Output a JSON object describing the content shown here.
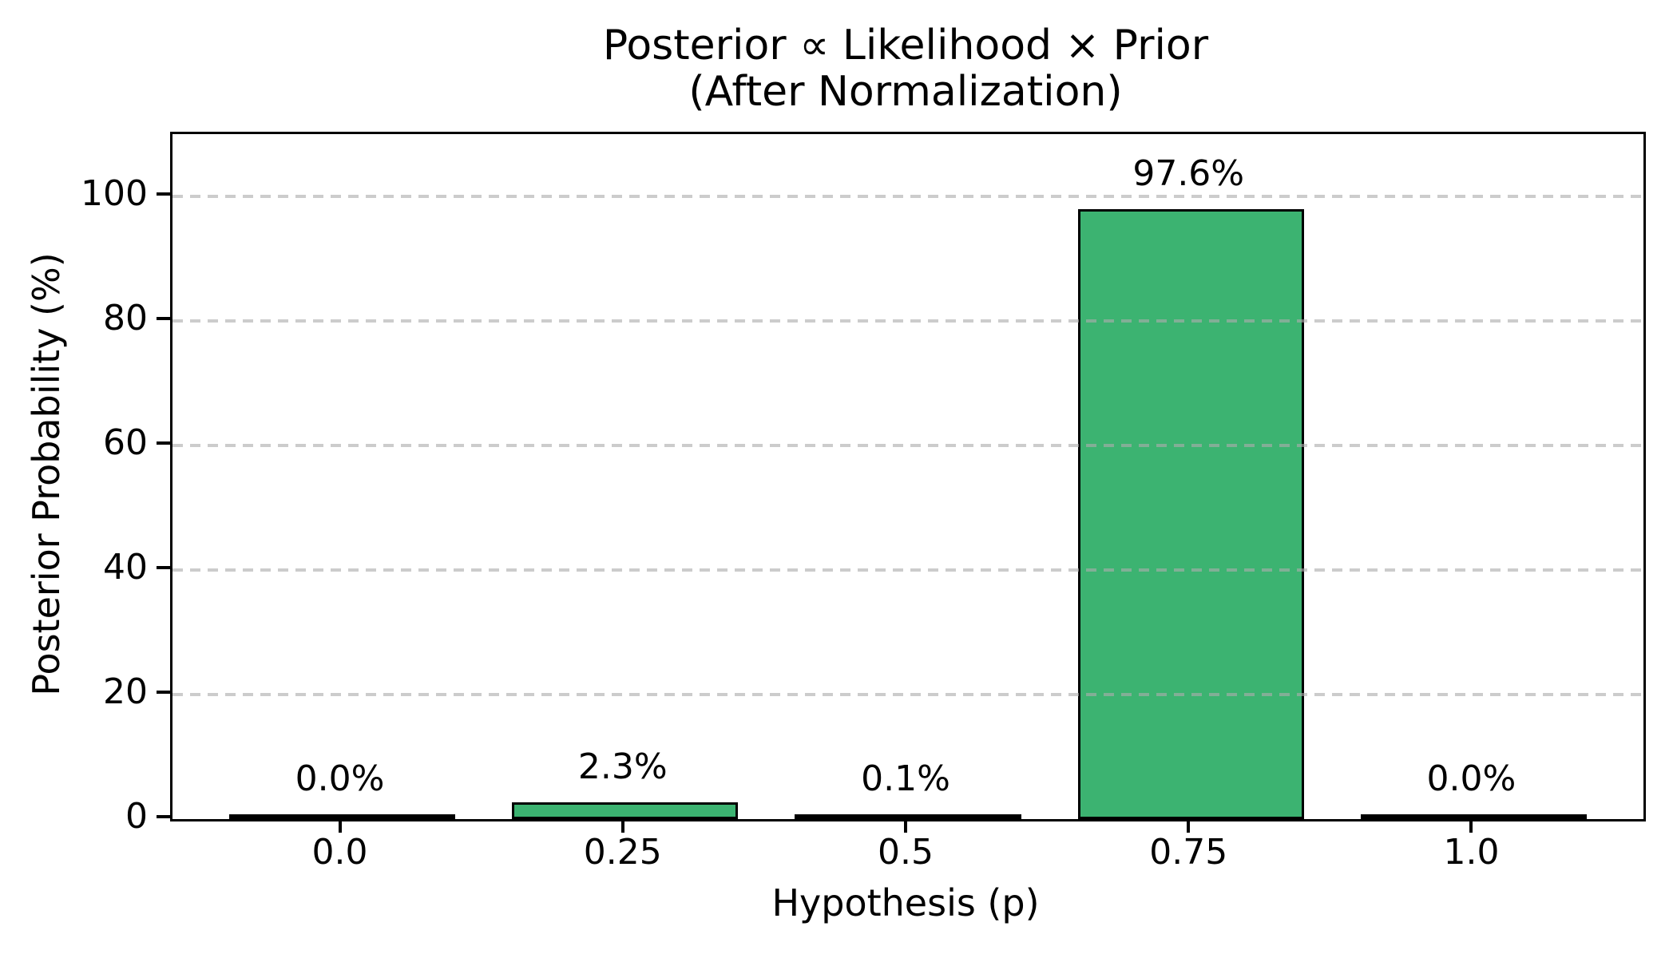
{
  "chart_data": {
    "type": "bar",
    "title_line1": "Posterior ∝ Likelihood × Prior",
    "title_line2": "(After Normalization)",
    "xlabel": "Hypothesis (p)",
    "ylabel": "Posterior Probability (%)",
    "categories": [
      "0.0",
      "0.25",
      "0.5",
      "0.75",
      "1.0"
    ],
    "values": [
      0.0,
      2.3,
      0.1,
      97.6,
      0.0
    ],
    "bar_labels": [
      "0.0%",
      "2.3%",
      "0.1%",
      "97.6%",
      "0.0%"
    ],
    "yticks": [
      0,
      20,
      40,
      60,
      80,
      100
    ],
    "ylim": [
      0,
      110
    ],
    "grid": "horizontal-dashed",
    "legend_position": "none",
    "colors": {
      "bar_fill": "#3cb371",
      "bar_edge": "#000000",
      "grid_line": "#d2d2d2",
      "spine": "#000000",
      "text": "#000000",
      "background": "#ffffff"
    }
  }
}
